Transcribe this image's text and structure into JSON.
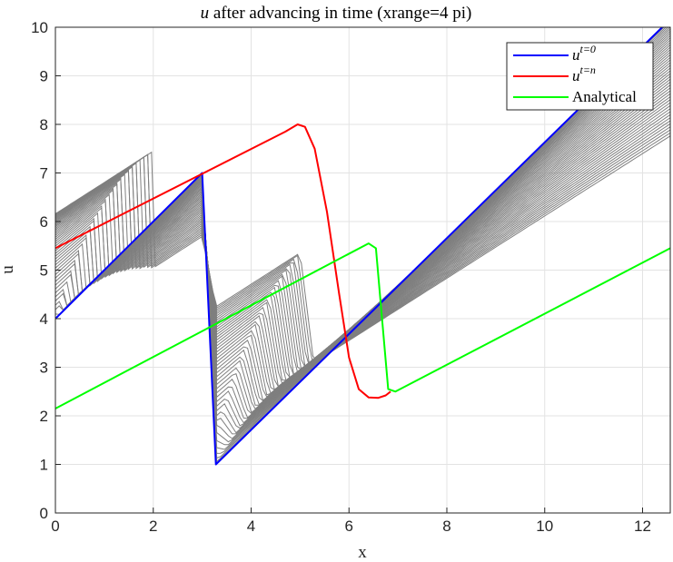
{
  "chart_data": {
    "type": "line",
    "title_var": "u",
    "title_rest": " after advancing in time (xrange=4 pi)",
    "xlabel": "x",
    "ylabel": "u",
    "xlim": [
      0,
      12.566
    ],
    "ylim": [
      0,
      10
    ],
    "xticks": [
      0,
      2,
      4,
      6,
      8,
      10,
      12
    ],
    "yticks": [
      0,
      1,
      2,
      3,
      4,
      5,
      6,
      7,
      8,
      9,
      10
    ],
    "grid": true,
    "legend_position": "top-right",
    "series": [
      {
        "name_base": "u",
        "name_sup": "t=0",
        "color": "#0000ff",
        "x": [
          0,
          3.0,
          3.28,
          12.4
        ],
        "y": [
          4.0,
          7.0,
          1.0,
          10.0
        ]
      },
      {
        "name_base": "u",
        "name_sup": "t=n",
        "color": "#ff0000",
        "x": [
          0,
          4.7,
          4.95,
          5.1,
          5.3,
          5.55,
          5.8,
          6.0,
          6.2,
          6.4,
          6.6,
          6.75,
          6.85
        ],
        "y": [
          5.45,
          7.85,
          8.0,
          7.95,
          7.5,
          6.2,
          4.5,
          3.2,
          2.55,
          2.38,
          2.37,
          2.42,
          2.5
        ]
      },
      {
        "name": "Analytical",
        "color": "#00ff00",
        "x": [
          0,
          6.4,
          6.55,
          6.8,
          6.95,
          12.566
        ],
        "y": [
          2.15,
          5.55,
          5.45,
          2.55,
          2.5,
          5.45
        ]
      }
    ],
    "history_color": "#7f7f7f"
  }
}
